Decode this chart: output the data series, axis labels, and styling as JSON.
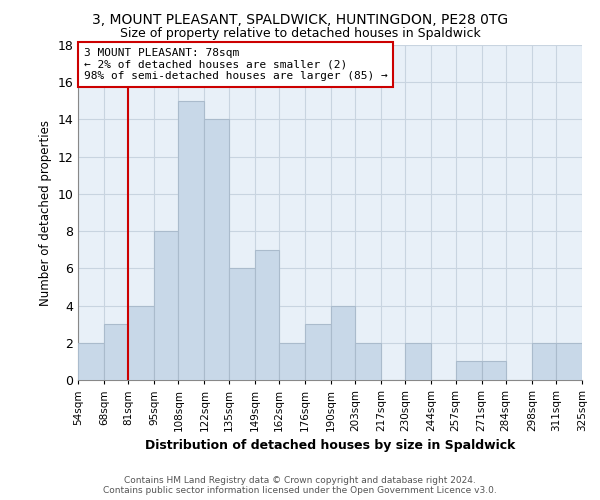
{
  "title": "3, MOUNT PLEASANT, SPALDWICK, HUNTINGDON, PE28 0TG",
  "subtitle": "Size of property relative to detached houses in Spaldwick",
  "xlabel": "Distribution of detached houses by size in Spaldwick",
  "ylabel": "Number of detached properties",
  "bin_labels": [
    "54sqm",
    "68sqm",
    "81sqm",
    "95sqm",
    "108sqm",
    "122sqm",
    "135sqm",
    "149sqm",
    "162sqm",
    "176sqm",
    "190sqm",
    "203sqm",
    "217sqm",
    "230sqm",
    "244sqm",
    "257sqm",
    "271sqm",
    "284sqm",
    "298sqm",
    "311sqm",
    "325sqm"
  ],
  "bin_edges": [
    54,
    68,
    81,
    95,
    108,
    122,
    135,
    149,
    162,
    176,
    190,
    203,
    217,
    230,
    244,
    257,
    271,
    284,
    298,
    311,
    325
  ],
  "bar_counts": [
    2,
    3,
    4,
    8,
    15,
    14,
    6,
    7,
    2,
    3,
    4,
    2,
    0,
    2,
    0,
    1,
    1,
    0,
    2,
    2
  ],
  "bar_color": "#c8d8e8",
  "bar_edge_color": "#aabbcc",
  "grid_color": "#c8d4e0",
  "chart_bg_color": "#e8f0f8",
  "property_line_x": 81,
  "property_line_color": "#cc0000",
  "annotation_text": "3 MOUNT PLEASANT: 78sqm\n← 2% of detached houses are smaller (2)\n98% of semi-detached houses are larger (85) →",
  "annotation_box_color": "#ffffff",
  "annotation_box_edge_color": "#cc0000",
  "footer_line1": "Contains HM Land Registry data © Crown copyright and database right 2024.",
  "footer_line2": "Contains public sector information licensed under the Open Government Licence v3.0.",
  "ylim": [
    0,
    18
  ],
  "yticks": [
    0,
    2,
    4,
    6,
    8,
    10,
    12,
    14,
    16,
    18
  ],
  "background_color": "#ffffff",
  "title_fontsize": 10,
  "subtitle_fontsize": 9
}
